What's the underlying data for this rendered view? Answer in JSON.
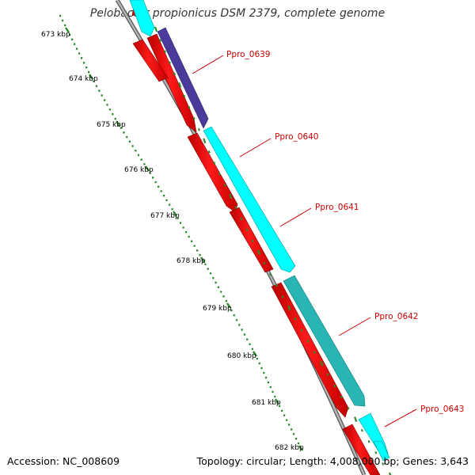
{
  "title": "Pelobacter propionicus DSM 2379, complete genome",
  "footer": {
    "accession": "Accession: NC_008609",
    "topology": "Topology: circular; Length: 4,008,000 bp; Genes: 3,643"
  },
  "colors": {
    "backbone": "#8f8f8f",
    "cds_reverse": "#ee0000",
    "cds_forward": "#00ffff",
    "cds_forward_dark": "#2ab5b5",
    "cds_highlight": "#4a3a9a",
    "tick": "#2a8a2a",
    "gene_label": "#cc0000"
  },
  "ruler": {
    "ticks": [
      {
        "label": "673 kbp"
      },
      {
        "label": "674 kbp"
      },
      {
        "label": "675 kbp"
      },
      {
        "label": "676 kbp"
      },
      {
        "label": "677 kbp"
      },
      {
        "label": "678 kbp"
      },
      {
        "label": "679 kbp"
      },
      {
        "label": "680 kbp"
      },
      {
        "label": "681 kbp"
      },
      {
        "label": "682 kbp"
      }
    ]
  },
  "genes": [
    {
      "label": "Ppro_0639"
    },
    {
      "label": "Ppro_0640"
    },
    {
      "label": "Ppro_0641"
    },
    {
      "label": "Ppro_0642"
    },
    {
      "label": "Ppro_0643"
    }
  ]
}
